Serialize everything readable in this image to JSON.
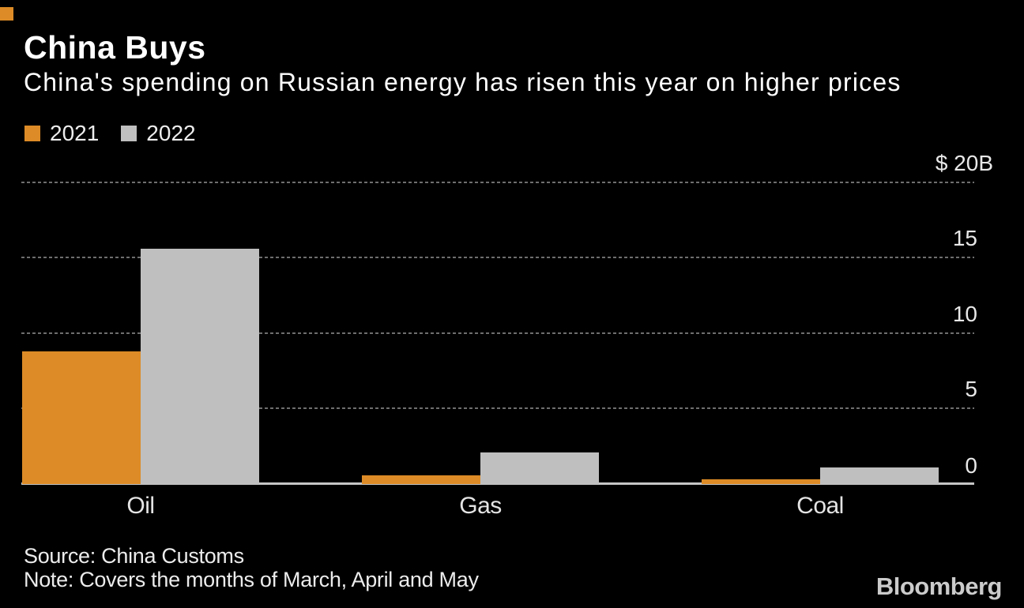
{
  "chart_data": {
    "type": "bar",
    "title": "China Buys",
    "subtitle": "China's spending on Russian energy has risen this year on higher prices",
    "categories": [
      "Oil",
      "Gas",
      "Coal"
    ],
    "series": [
      {
        "name": "2021",
        "color": "#DC8B26",
        "values": [
          8.8,
          0.6,
          0.3
        ]
      },
      {
        "name": "2022",
        "color": "#BFBFBF",
        "values": [
          15.6,
          2.1,
          1.1
        ]
      }
    ],
    "y_ticks": [
      {
        "value": 20,
        "label": "$ 20B"
      },
      {
        "value": 15,
        "label": "15"
      },
      {
        "value": 10,
        "label": "10"
      },
      {
        "value": 5,
        "label": "5"
      },
      {
        "value": 0,
        "label": "0"
      }
    ],
    "ylim": [
      0,
      20
    ],
    "xlabel": "",
    "ylabel": "",
    "grid": "horizontal-dotted",
    "legend_position": "top-left",
    "axis_labels_side": "right"
  },
  "footer": {
    "source": "Source: China Customs",
    "note": "Note: Covers the months of March, April and May",
    "brand": "Bloomberg"
  },
  "colors": {
    "background": "#000000",
    "accent_square": "#DC8B26",
    "bar_2021": "#DC8B26",
    "bar_2022": "#BFBFBF",
    "gridline": "#6E6E6E",
    "baseline": "#C6C6C6",
    "title_text": "#FFFFFF",
    "label_text": "#E8E8E8",
    "brand_text": "#CBCBCB"
  }
}
